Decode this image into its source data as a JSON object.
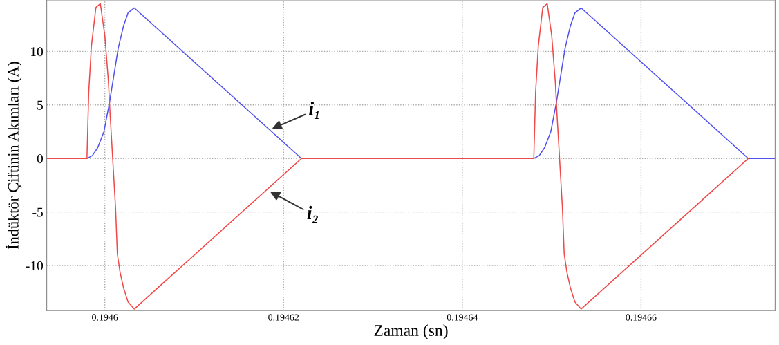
{
  "chart_data": {
    "type": "line",
    "xlabel": "Zaman (sn)",
    "ylabel": "İndüktör Çiftinin Akımları (A)",
    "xlim": [
      0.1945935,
      0.194675
    ],
    "ylim": [
      -14.2,
      14.8
    ],
    "xticks": [
      0.1946,
      0.19462,
      0.19464,
      0.19466
    ],
    "yticks": [
      -10,
      -5,
      0,
      5,
      10
    ],
    "grid": true,
    "line_style": "solid",
    "marker": "none",
    "series": [
      {
        "color": "#5050f0",
        "x": [
          0.1945935,
          0.194598,
          0.1945986,
          0.1945992,
          0.1945999,
          0.1946005,
          0.194601,
          0.1946015,
          0.1946021,
          0.1946026,
          0.1946033,
          0.194622,
          0.194648,
          0.1946486,
          0.1946492,
          0.1946499,
          0.1946505,
          0.194651,
          0.1946515,
          0.1946521,
          0.1946526,
          0.1946533,
          0.194672,
          0.194675
        ],
        "values": [
          0,
          0,
          0.26,
          1.0,
          2.5,
          5.1,
          7.7,
          10.3,
          12.4,
          13.6,
          14.06,
          0,
          0,
          0.26,
          1.0,
          2.5,
          5.1,
          7.7,
          10.3,
          12.4,
          13.6,
          14.06,
          0,
          0
        ]
      },
      {
        "color": "#f04848",
        "x": [
          0.1945935,
          0.194598,
          0.1945982,
          0.1945985,
          0.194599,
          0.1945995,
          0.1946,
          0.1946004,
          0.1946006,
          0.1946009,
          0.1946012,
          0.1946014,
          0.1946017,
          0.1946021,
          0.1946026,
          0.1946033,
          0.194622,
          0.194648,
          0.1946482,
          0.1946485,
          0.194649,
          0.1946495,
          0.19465,
          0.1946504,
          0.1946506,
          0.1946509,
          0.1946512,
          0.1946514,
          0.1946517,
          0.1946521,
          0.1946526,
          0.1946533,
          0.194672
        ],
        "values": [
          0,
          0,
          6.2,
          10.5,
          14.1,
          14.45,
          11.5,
          7.2,
          4,
          -0.3,
          -4.6,
          -8.9,
          -10.6,
          -12.1,
          -13.4,
          -14.06,
          0,
          0,
          6.2,
          10.5,
          14.1,
          14.45,
          11.5,
          7.2,
          4,
          -0.3,
          -4.6,
          -8.9,
          -10.6,
          -12.1,
          -13.4,
          -14.06,
          0
        ]
      }
    ],
    "annotations": [
      {
        "text": "i₁",
        "x": 0.1946185,
        "y": 2.7
      },
      {
        "text": "i₂",
        "x": 0.1946183,
        "y": -3.0
      }
    ]
  }
}
